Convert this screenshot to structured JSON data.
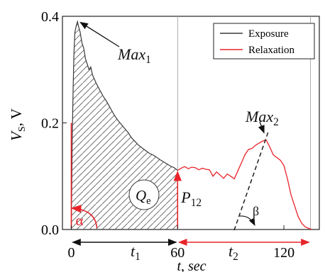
{
  "chart_data": {
    "type": "line",
    "title": "",
    "xlabel": "t, sec",
    "ylabel": "V_S, V",
    "ylabel_main": "V",
    "ylabel_sub": "S",
    "ylabel_unit": ", V",
    "xlim": [
      -5,
      140
    ],
    "ylim": [
      0,
      0.4
    ],
    "xticks": [
      {
        "value": 0,
        "label": "0"
      },
      {
        "value": 60,
        "label": "60"
      },
      {
        "value": 120,
        "label": "120"
      }
    ],
    "yticks": [
      {
        "value": 0.0,
        "label": "0.0"
      },
      {
        "value": 0.2,
        "label": "0.2"
      },
      {
        "value": 0.4,
        "label": "0.4"
      }
    ],
    "legend": {
      "placement": "top-right",
      "entries": [
        {
          "name": "Exposure",
          "color": "#3a3a3a"
        },
        {
          "name": "Relaxation",
          "color": "#e8232a"
        }
      ]
    },
    "series": [
      {
        "name": "Exposure",
        "color": "#3a3a3a",
        "x": [
          0,
          0.5,
          1,
          1.5,
          2,
          3,
          3.5,
          4,
          5,
          6,
          7,
          8,
          9,
          10,
          11,
          12,
          14,
          16,
          18,
          20,
          22,
          24,
          26,
          28,
          30,
          32,
          34,
          36,
          38,
          40,
          42,
          44,
          46,
          48,
          50,
          52,
          54,
          56,
          58,
          60
        ],
        "y": [
          0.0,
          0.16,
          0.26,
          0.33,
          0.37,
          0.385,
          0.39,
          0.382,
          0.37,
          0.35,
          0.34,
          0.32,
          0.31,
          0.3,
          0.305,
          0.29,
          0.275,
          0.262,
          0.25,
          0.24,
          0.228,
          0.216,
          0.206,
          0.198,
          0.19,
          0.182,
          0.172,
          0.165,
          0.158,
          0.153,
          0.148,
          0.143,
          0.14,
          0.136,
          0.131,
          0.127,
          0.123,
          0.119,
          0.116,
          0.111
        ]
      },
      {
        "name": "Relaxation",
        "color": "#e8232a",
        "x": [
          60,
          62,
          64,
          66,
          68,
          70,
          72,
          74,
          76,
          78,
          80,
          82,
          84,
          86,
          88,
          90,
          92,
          94,
          96,
          98,
          100,
          102,
          104,
          106,
          108,
          110,
          112,
          114,
          116,
          118,
          120,
          122,
          124,
          126,
          128,
          130,
          132,
          134,
          136
        ],
        "y": [
          0.111,
          0.115,
          0.118,
          0.114,
          0.117,
          0.116,
          0.112,
          0.115,
          0.113,
          0.112,
          0.1,
          0.108,
          0.102,
          0.096,
          0.104,
          0.1,
          0.095,
          0.11,
          0.125,
          0.14,
          0.15,
          0.152,
          0.158,
          0.162,
          0.166,
          0.168,
          0.155,
          0.14,
          0.135,
          0.13,
          0.12,
          0.095,
          0.065,
          0.045,
          0.025,
          0.012,
          0.005,
          0.002,
          0.0
        ]
      }
    ],
    "annotations": {
      "max1": {
        "label_main": "Max",
        "label_sub": "1",
        "x": 3.5,
        "y": 0.39
      },
      "max2": {
        "label_main": "Max",
        "label_sub": "2",
        "x": 110,
        "y": 0.168
      },
      "qe": {
        "label_main": "Q",
        "label_sub": "e"
      },
      "p12": {
        "label_main": "P",
        "label_sub": "12",
        "x": 60,
        "y": 0.111
      },
      "alpha": {
        "label": "α"
      },
      "beta": {
        "label": "β"
      },
      "t1": {
        "label_main": "t",
        "label_sub": "1",
        "from": 0,
        "to": 60
      },
      "t2": {
        "label_main": "t",
        "label_sub": "2",
        "from": 60,
        "to": 135
      }
    }
  }
}
